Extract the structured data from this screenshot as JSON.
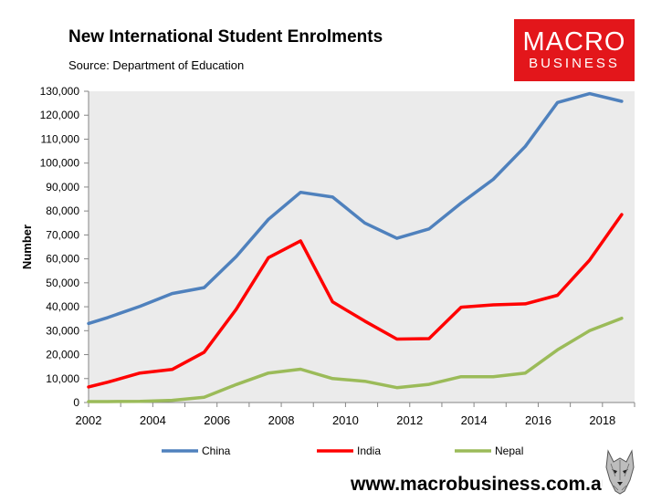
{
  "header": {
    "title": "New International Student Enrolments",
    "subtitle": "Source: Department of Education"
  },
  "logo": {
    "line1": "MACRO",
    "line2": "BUSINESS",
    "bg_color": "#e3161b"
  },
  "footer": {
    "url": "www.macrobusiness.com.au",
    "emblem_icon": "wolf-head-icon"
  },
  "chart_data": {
    "type": "line",
    "title": "New International Student Enrolments",
    "xlabel": "",
    "ylabel": "Number",
    "xlim": [
      2002,
      2019
    ],
    "ylim": [
      0,
      130000
    ],
    "yticks": [
      0,
      10000,
      20000,
      30000,
      40000,
      50000,
      60000,
      70000,
      80000,
      90000,
      100000,
      110000,
      120000,
      130000
    ],
    "ytick_labels": [
      "0",
      "10,000",
      "20,000",
      "30,000",
      "40,000",
      "50,000",
      "60,000",
      "70,000",
      "80,000",
      "90,000",
      "100,000",
      "110,000",
      "120,000",
      "130,000"
    ],
    "xticks": [
      2002,
      2004,
      2006,
      2008,
      2010,
      2012,
      2014,
      2016,
      2018
    ],
    "xtick_labels": [
      "2002",
      "2004",
      "2006",
      "2008",
      "2010",
      "2012",
      "2014",
      "2016",
      "2018"
    ],
    "grid": false,
    "plot_background": "#ebebeb",
    "legend_position": "bottom",
    "x": [
      2002,
      2002.6,
      2003.6,
      2004.6,
      2005.6,
      2006.6,
      2007.6,
      2008.6,
      2009.6,
      2010.6,
      2011.6,
      2012.6,
      2013.6,
      2014.6,
      2015.6,
      2016.6,
      2017.6,
      2018.6
    ],
    "series": [
      {
        "name": "China",
        "color": "#4f81bd",
        "values": [
          33000,
          35500,
          40200,
          45500,
          48000,
          61000,
          76500,
          87800,
          85800,
          75000,
          68600,
          72500,
          83300,
          93200,
          107000,
          125300,
          129000,
          125800
        ]
      },
      {
        "name": "India",
        "color": "#ff0000",
        "values": [
          6500,
          8500,
          12300,
          13800,
          21000,
          39000,
          60500,
          67500,
          42000,
          34000,
          26500,
          26700,
          39800,
          40800,
          41200,
          44800,
          59500,
          78500
        ]
      },
      {
        "name": "Nepal",
        "color": "#9bbb59",
        "values": [
          400,
          400,
          500,
          900,
          2200,
          7500,
          12300,
          13900,
          10000,
          8900,
          6200,
          7600,
          10800,
          10800,
          12300,
          22000,
          30000,
          35200
        ]
      }
    ]
  }
}
